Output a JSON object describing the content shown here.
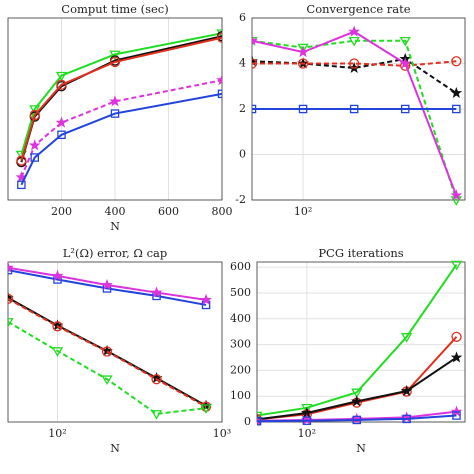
{
  "chart_data": [
    {
      "type": "line",
      "title": "Comput time (sec)",
      "xlabel": "N",
      "xlim": [
        0,
        800
      ],
      "ylim": [
        0,
        12
      ],
      "grid": true,
      "xticks": [
        200,
        400,
        600,
        800
      ],
      "x": [
        50,
        100,
        200,
        400,
        800
      ],
      "series": [
        {
          "color": "#22dd22",
          "marker": "v",
          "dashed": false,
          "values": [
            3,
            6,
            8.2,
            9.6,
            11
          ]
        },
        {
          "color": "#111111",
          "marker": "o",
          "dashed": false,
          "values": [
            2.5,
            5.5,
            7.5,
            9.2,
            10.8
          ]
        },
        {
          "color": "#e03020",
          "marker": "o",
          "dashed": false,
          "values": [
            2.6,
            5.6,
            7.6,
            9.1,
            10.7
          ]
        },
        {
          "color": "#dd33dd",
          "marker": "*",
          "dashed": true,
          "values": [
            1.5,
            3.6,
            5.1,
            6.5,
            7.9
          ]
        },
        {
          "color": "#2244dd",
          "marker": "s",
          "dashed": false,
          "values": [
            1,
            2.8,
            4.3,
            5.7,
            7
          ]
        }
      ]
    },
    {
      "type": "line",
      "title": "Convergence rate",
      "xscale": "log",
      "xlim": [
        50,
        900
      ],
      "ylim": [
        -2,
        6
      ],
      "grid": true,
      "xticks": [
        {
          "value": 100,
          "label": "10²"
        }
      ],
      "yticks": [
        -2,
        0,
        2,
        4,
        6
      ],
      "x": [
        50,
        100,
        200,
        400,
        800
      ],
      "series": [
        {
          "color": "#111111",
          "marker": "*",
          "dashed": true,
          "values": [
            4.1,
            4.0,
            3.8,
            4.2,
            2.7
          ]
        },
        {
          "color": "#e03020",
          "marker": "o",
          "dashed": true,
          "values": [
            4.0,
            4.0,
            4.0,
            3.9,
            4.1
          ]
        },
        {
          "color": "#22dd22",
          "marker": "v",
          "dashed": true,
          "values": [
            5.0,
            4.7,
            5.0,
            5.0,
            -2.0
          ]
        },
        {
          "color": "#dd33dd",
          "marker": "*",
          "dashed": false,
          "values": [
            5.0,
            4.5,
            5.4,
            4.0,
            -1.8
          ]
        },
        {
          "color": "#2244dd",
          "marker": "s",
          "dashed": false,
          "values": [
            2.0,
            2.0,
            2.0,
            2.0,
            2.0
          ]
        }
      ]
    },
    {
      "type": "line",
      "title": "L²(Ω) error, Ω cap",
      "xlabel": "N",
      "xscale": "log",
      "yscale": "log",
      "xlim": [
        50,
        1000
      ],
      "ylim": [
        2e-05,
        0.06
      ],
      "grid": true,
      "xticks": [
        {
          "value": 100,
          "label": "10²"
        },
        {
          "value": 1000,
          "label": "10³"
        }
      ],
      "x": [
        50,
        100,
        200,
        400,
        800
      ],
      "series": [
        {
          "color": "#2244dd",
          "marker": "s",
          "dashed": false,
          "values": [
            0.04,
            0.025,
            0.016,
            0.011,
            0.007
          ]
        },
        {
          "color": "#dd33dd",
          "marker": "*",
          "dashed": false,
          "values": [
            0.045,
            0.03,
            0.019,
            0.013,
            0.009
          ]
        },
        {
          "color": "#111111",
          "marker": "*",
          "dashed": false,
          "values": [
            0.01,
            0.0025,
            0.0007,
            0.00018,
            4.5e-05
          ]
        },
        {
          "color": "#e03020",
          "marker": "o",
          "dashed": true,
          "values": [
            0.0095,
            0.0024,
            0.00068,
            0.00017,
            4.3e-05
          ]
        },
        {
          "color": "#22dd22",
          "marker": "v",
          "dashed": true,
          "values": [
            0.003,
            0.0007,
            0.00017,
            3e-05,
            4e-05
          ]
        }
      ]
    },
    {
      "type": "line",
      "title": "PCG iterations",
      "xlabel": "N",
      "xscale": "log",
      "xlim": [
        50,
        900
      ],
      "ylim": [
        0,
        620
      ],
      "grid": true,
      "xticks": [
        {
          "value": 100,
          "label": "10²"
        }
      ],
      "yticks": [
        0,
        100,
        200,
        300,
        400,
        500,
        600
      ],
      "x": [
        50,
        100,
        200,
        400,
        800
      ],
      "series": [
        {
          "color": "#22dd22",
          "marker": "v",
          "dashed": false,
          "values": [
            25,
            55,
            115,
            330,
            610
          ]
        },
        {
          "color": "#e03020",
          "marker": "o",
          "dashed": false,
          "values": [
            10,
            30,
            75,
            118,
            330
          ]
        },
        {
          "color": "#111111",
          "marker": "*",
          "dashed": false,
          "values": [
            10,
            35,
            80,
            120,
            250
          ]
        },
        {
          "color": "#dd33dd",
          "marker": "*",
          "dashed": false,
          "values": [
            5,
            8,
            12,
            18,
            40
          ]
        },
        {
          "color": "#2244dd",
          "marker": "s",
          "dashed": false,
          "values": [
            3,
            5,
            8,
            12,
            25
          ]
        }
      ]
    }
  ]
}
